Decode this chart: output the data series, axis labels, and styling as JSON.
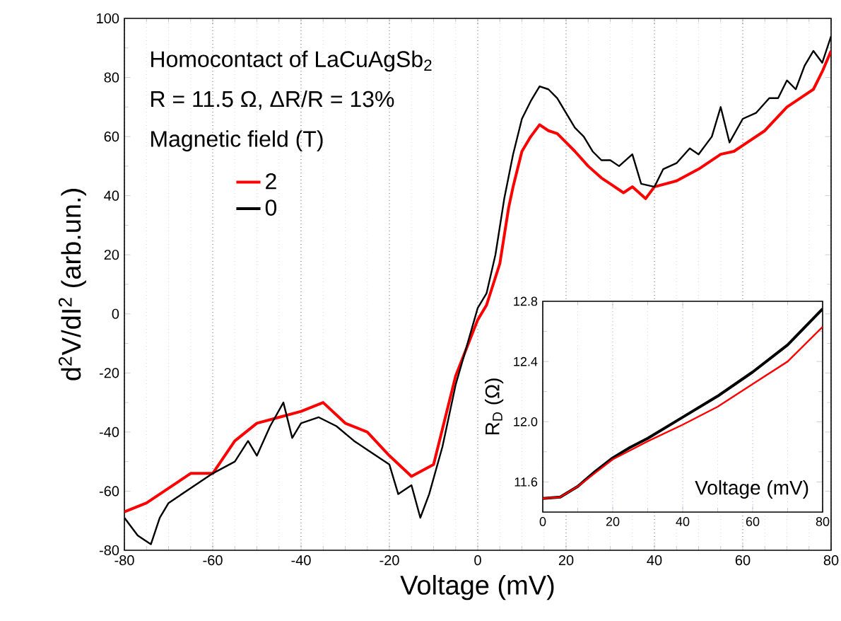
{
  "chart_data": [
    {
      "type": "line",
      "title": "Homocontact of LaCuAgSb$_{2}$",
      "annotations": [
        "R = 11.5 Ω,  ΔR/R = 13%"
      ],
      "legend_title": "Magnetic field (T)",
      "xlabel": "Voltage (mV)",
      "ylabel": "d$^{2}$V/dI$^{2}$ (arb.un.)",
      "xlim": [
        -80,
        80
      ],
      "ylim": [
        -80,
        100
      ],
      "xticks": [
        -80,
        -60,
        -40,
        -20,
        0,
        20,
        40,
        60,
        80
      ],
      "yticks": [
        -80,
        -60,
        -40,
        -20,
        0,
        20,
        40,
        60,
        80,
        100
      ],
      "grid": "x",
      "legend": "top left",
      "series": [
        {
          "name": "2",
          "color": "#ff0000",
          "x": [
            -80,
            -75,
            -70,
            -65,
            -60,
            -55,
            -50,
            -45,
            -40,
            -35,
            -30,
            -25,
            -20,
            -15,
            -10,
            -5,
            0,
            2,
            5,
            7,
            8,
            10,
            12,
            14,
            16,
            18,
            20,
            22,
            25,
            28,
            30,
            33,
            35,
            38,
            40,
            45,
            50,
            55,
            58,
            60,
            65,
            70,
            74,
            76,
            78,
            80
          ],
          "values": [
            -67,
            -64,
            -59,
            -54,
            -54,
            -43,
            -37,
            -35,
            -33,
            -30,
            -37,
            -40,
            -48,
            -55,
            -51,
            -21,
            -2,
            3,
            17,
            36,
            43,
            55,
            60,
            64,
            62,
            61,
            58,
            55,
            50,
            46,
            44,
            41,
            43,
            39,
            43,
            45,
            49,
            54,
            55,
            57,
            62,
            70,
            74,
            76,
            82,
            89
          ]
        },
        {
          "name": "0",
          "color": "#000000",
          "x": [
            -80,
            -77,
            -74,
            -72,
            -70,
            -65,
            -60,
            -55,
            -52,
            -50,
            -47,
            -44,
            -42,
            -40,
            -36,
            -32,
            -28,
            -25,
            -20,
            -18,
            -15,
            -13,
            -11,
            -8,
            -5,
            0,
            2,
            4,
            6,
            8,
            10,
            12,
            14,
            16,
            18,
            20,
            22,
            24,
            26,
            28,
            30,
            32,
            35,
            37,
            40,
            42,
            45,
            48,
            50,
            53,
            55,
            57,
            60,
            63,
            66,
            68,
            70,
            72,
            74,
            76,
            78,
            80
          ],
          "values": [
            -69,
            -75,
            -78,
            -69,
            -64,
            -59,
            -54,
            -50,
            -43,
            -48,
            -38,
            -30,
            -42,
            -37,
            -35,
            -38,
            -43,
            -46,
            -51,
            -61,
            -58,
            -69,
            -61,
            -45,
            -24,
            2,
            7,
            20,
            39,
            54,
            66,
            72,
            77,
            76,
            73,
            68,
            63,
            60,
            55,
            52,
            52,
            50,
            54,
            44,
            43,
            49,
            51,
            56,
            54,
            60,
            70,
            58,
            66,
            68,
            73,
            73,
            79,
            76,
            84,
            89,
            85,
            94
          ]
        }
      ]
    },
    {
      "type": "line",
      "xlabel": "Voltage (mV)",
      "ylabel": "R$_{D}$ (Ω)",
      "xlim": [
        0,
        80
      ],
      "ylim": [
        11.4,
        12.8
      ],
      "xticks": [
        0,
        20,
        40,
        60,
        80
      ],
      "yticks": [
        11.6,
        {
          "value": 12,
          "label": "12.0"
        },
        12.4,
        12.8
      ],
      "grid": "x",
      "series": [
        {
          "color": "#000000",
          "x": [
            0,
            5,
            10,
            15,
            20,
            25,
            30,
            40,
            50,
            60,
            70,
            80
          ],
          "values": [
            11.49,
            11.5,
            11.57,
            11.67,
            11.76,
            11.83,
            11.89,
            12.03,
            12.17,
            12.33,
            12.51,
            12.75
          ]
        },
        {
          "color": "#ff0000",
          "x": [
            0,
            5,
            10,
            15,
            20,
            25,
            30,
            40,
            50,
            60,
            70,
            80
          ],
          "values": [
            11.49,
            11.5,
            11.57,
            11.66,
            11.75,
            11.81,
            11.87,
            11.98,
            12.1,
            12.25,
            12.4,
            12.63
          ]
        }
      ]
    }
  ]
}
